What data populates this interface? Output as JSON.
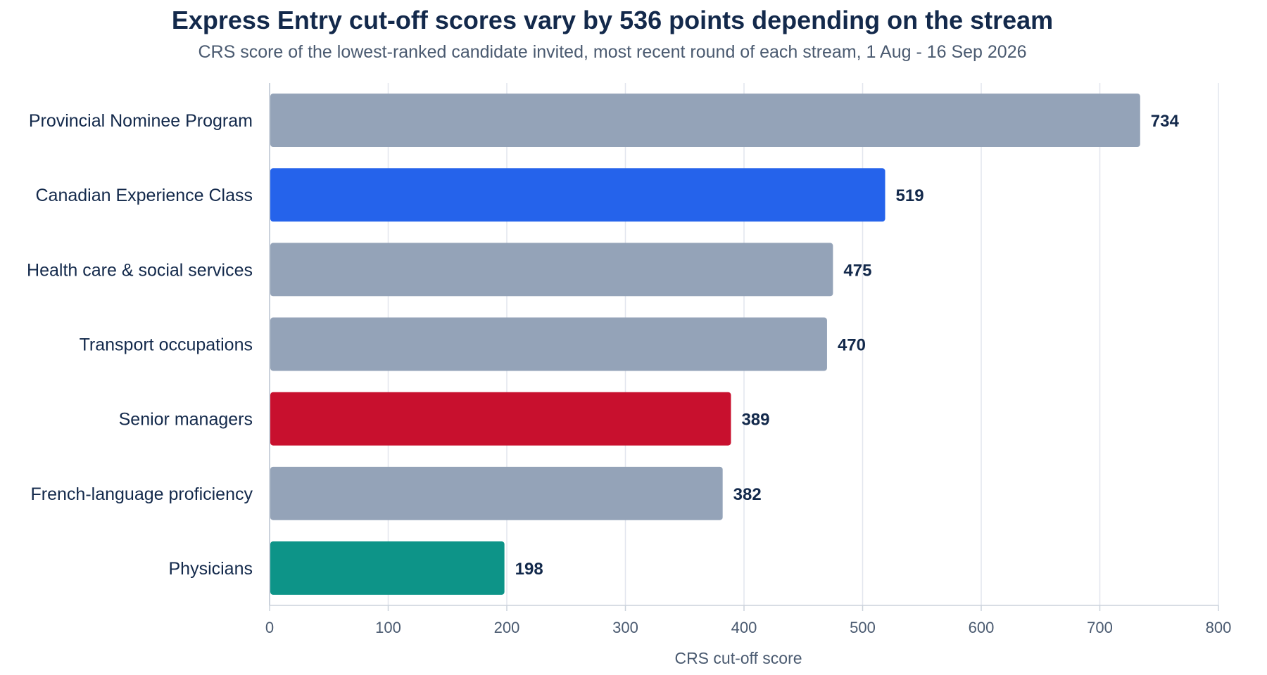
{
  "chart_data": {
    "type": "bar",
    "orientation": "horizontal",
    "title": "Express Entry cut-off scores vary by 536 points depending on the stream",
    "subtitle": "CRS score of the lowest-ranked candidate invited, most recent round of each stream, 1 Aug - 16 Sep 2026",
    "xlabel": "CRS cut-off score",
    "ylabel": "",
    "xlim": [
      0,
      800
    ],
    "xticks": [
      "0",
      "100",
      "200",
      "300",
      "400",
      "500",
      "600",
      "700",
      "800"
    ],
    "grid": "vertical",
    "legend": "none",
    "categories": [
      "Provincial Nominee Program",
      "Canadian Experience Class",
      "Health care & social services",
      "Transport occupations",
      "Senior managers",
      "French-language proficiency",
      "Physicians"
    ],
    "values": [
      734,
      519,
      475,
      470,
      389,
      382,
      198
    ],
    "value_labels": [
      "734",
      "519",
      "475",
      "470",
      "389",
      "382",
      "198"
    ],
    "colors": [
      "#94a3b8",
      "#2563eb",
      "#94a3b8",
      "#94a3b8",
      "#c8102e",
      "#94a3b8",
      "#0d9488"
    ]
  }
}
